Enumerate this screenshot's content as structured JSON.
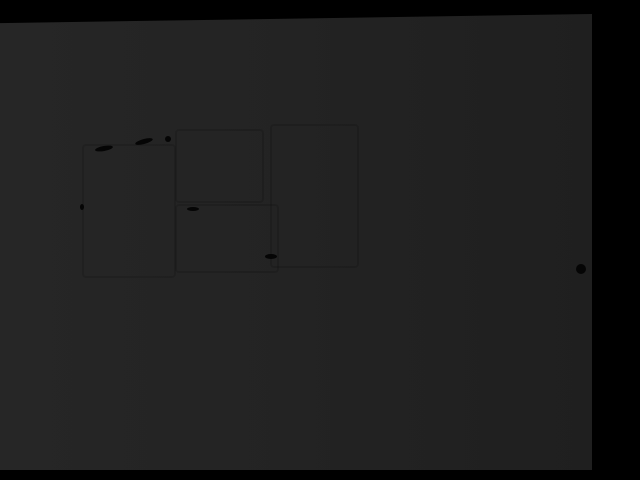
{
  "colors": {
    "background": "#232323",
    "border": "#000000"
  }
}
